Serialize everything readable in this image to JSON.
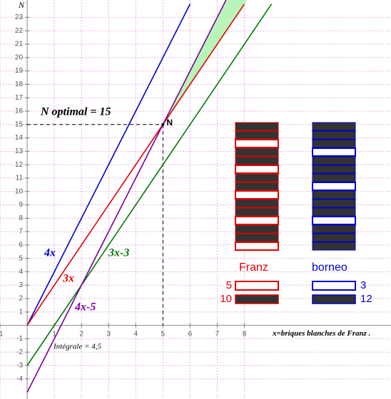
{
  "chart_data": {
    "type": "line",
    "xlim": [
      -1,
      13.4
    ],
    "ylim": [
      -5.5,
      24.3
    ],
    "xticks": [
      -1,
      1,
      2,
      3,
      4,
      5,
      6,
      7,
      8
    ],
    "yticks": [
      -4,
      -3,
      -2,
      -1,
      1,
      2,
      3,
      4,
      5,
      6,
      7,
      8,
      9,
      10,
      11,
      12,
      13,
      14,
      15,
      16,
      17,
      18,
      19,
      20,
      21,
      22,
      23
    ],
    "grid": true,
    "x_label": "x=briques blanches de Franz .",
    "y_label": "N",
    "series": [
      {
        "name": "4x",
        "color": "#0000cc",
        "x": [
          0,
          6
        ],
        "values": [
          0,
          24
        ]
      },
      {
        "name": "3x",
        "color": "#e00000",
        "x": [
          0,
          8
        ],
        "values": [
          0,
          24
        ]
      },
      {
        "name": "3x-3",
        "color": "#007a00",
        "x": [
          0,
          9
        ],
        "values": [
          -3,
          24
        ]
      },
      {
        "name": "4x-5",
        "color": "#7a0099",
        "x": [
          0,
          7.325
        ],
        "values": [
          -5,
          24.3
        ]
      }
    ],
    "point": {
      "label": "N",
      "x": 5,
      "y": 15
    },
    "point_caption": "N optimal = 15",
    "integral_label": "Intégrale = 4,5",
    "stacks": [
      {
        "name": "Franz",
        "color": "#e00000",
        "white": 5,
        "black": 10
      },
      {
        "name": "borneo",
        "color": "#0000cc",
        "white": 3,
        "black": 12
      }
    ]
  }
}
